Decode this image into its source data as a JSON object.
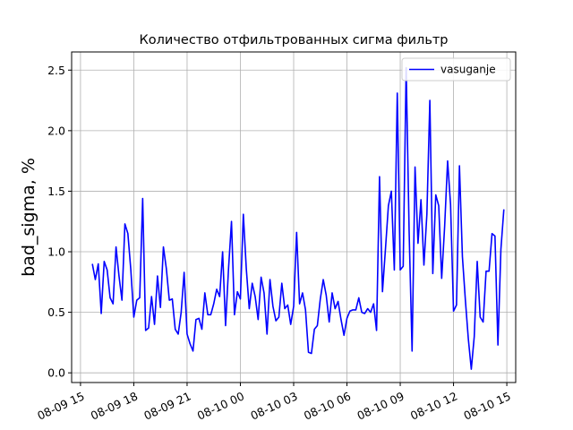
{
  "chart_data": {
    "type": "line",
    "title": "Количество отфильтрованных сигма фильтр",
    "xlabel": "",
    "ylabel": "bad_sigma, %",
    "grid": true,
    "legend_position": "top-right",
    "xlim": [
      "2018-08-09 14:30",
      "2018-08-10 15:30"
    ],
    "ylim": [
      -0.08,
      2.65
    ],
    "x_tick_labels": [
      "08-09 15",
      "08-09 18",
      "08-09 21",
      "08-10 00",
      "08-10 03",
      "08-10 06",
      "08-10 09",
      "08-10 12",
      "08-10 15"
    ],
    "y_tick_labels": [
      "0.0",
      "0.5",
      "1.0",
      "1.5",
      "2.0",
      "2.5"
    ],
    "series": [
      {
        "name": "vasuganje",
        "color": "#0000ff",
        "x_start": "2018-08-09 15:40",
        "x_step_minutes": 10,
        "values": [
          0.9,
          0.77,
          0.9,
          0.49,
          0.92,
          0.85,
          0.62,
          0.57,
          1.04,
          0.8,
          0.6,
          1.23,
          1.15,
          0.85,
          0.46,
          0.6,
          0.62,
          1.44,
          0.35,
          0.37,
          0.63,
          0.4,
          0.8,
          0.54,
          1.04,
          0.86,
          0.6,
          0.61,
          0.36,
          0.32,
          0.5,
          0.83,
          0.32,
          0.24,
          0.18,
          0.44,
          0.45,
          0.36,
          0.66,
          0.48,
          0.48,
          0.57,
          0.69,
          0.63,
          1.0,
          0.39,
          0.86,
          1.25,
          0.48,
          0.67,
          0.61,
          1.31,
          0.86,
          0.53,
          0.74,
          0.63,
          0.44,
          0.79,
          0.66,
          0.32,
          0.77,
          0.55,
          0.43,
          0.46,
          0.74,
          0.53,
          0.56,
          0.4,
          0.55,
          1.16,
          0.57,
          0.66,
          0.52,
          0.17,
          0.16,
          0.36,
          0.39,
          0.61,
          0.77,
          0.64,
          0.42,
          0.66,
          0.53,
          0.59,
          0.44,
          0.31,
          0.45,
          0.51,
          0.52,
          0.52,
          0.62,
          0.5,
          0.49,
          0.53,
          0.5,
          0.57,
          0.35,
          1.62,
          0.67,
          1.02,
          1.38,
          1.5,
          0.85,
          2.31,
          0.85,
          0.88,
          2.52,
          1.17,
          0.18,
          1.7,
          1.07,
          1.43,
          0.89,
          1.31,
          2.25,
          0.82,
          1.47,
          1.38,
          0.78,
          1.21,
          1.75,
          1.39,
          0.51,
          0.56,
          1.71,
          0.96,
          0.6,
          0.28,
          0.03,
          0.3,
          0.92,
          0.46,
          0.42,
          0.84,
          0.84,
          1.15,
          1.13,
          0.23,
          1.02,
          1.35
        ]
      }
    ]
  }
}
